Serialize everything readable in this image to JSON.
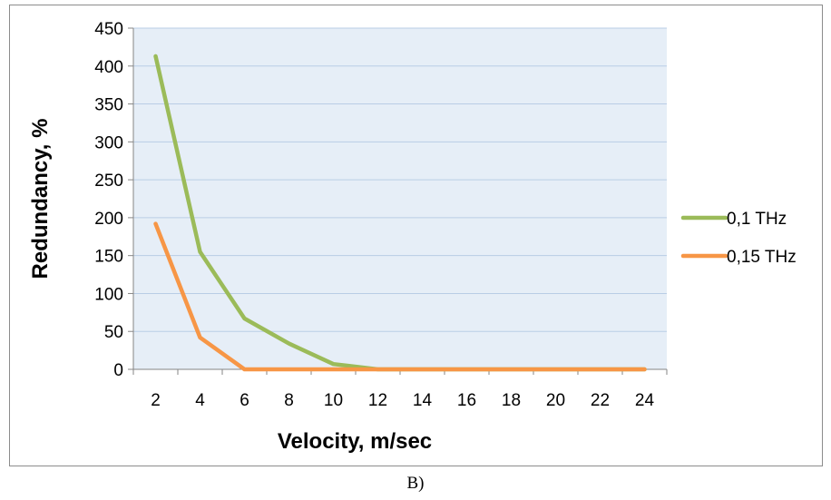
{
  "chart_data": {
    "type": "line",
    "x": [
      2,
      4,
      6,
      8,
      10,
      12,
      14,
      16,
      18,
      20,
      22,
      24
    ],
    "series": [
      {
        "name": "0,1 THz",
        "color": "#9bbb59",
        "values": [
          413,
          155,
          67,
          34,
          7,
          0,
          0,
          0,
          0,
          0,
          0,
          0
        ]
      },
      {
        "name": "0,15 THz",
        "color": "#f79646",
        "values": [
          192,
          42,
          0,
          0,
          0,
          0,
          0,
          0,
          0,
          0,
          0,
          0
        ]
      }
    ],
    "y_ticks": [
      "0",
      "50",
      "100",
      "150",
      "200",
      "250",
      "300",
      "350",
      "400",
      "450"
    ],
    "x_ticks": [
      "2",
      "4",
      "6",
      "8",
      "10",
      "12",
      "14",
      "16",
      "18",
      "20",
      "22",
      "24"
    ],
    "xlabel": "Velocity, m/sec",
    "ylabel": "Redundancy, %",
    "ylim": [
      0,
      450
    ],
    "grid": true,
    "legend_position": "right",
    "plot_background": "#e6eef7",
    "gridline_color": "#b9cde5"
  },
  "caption": "B)"
}
